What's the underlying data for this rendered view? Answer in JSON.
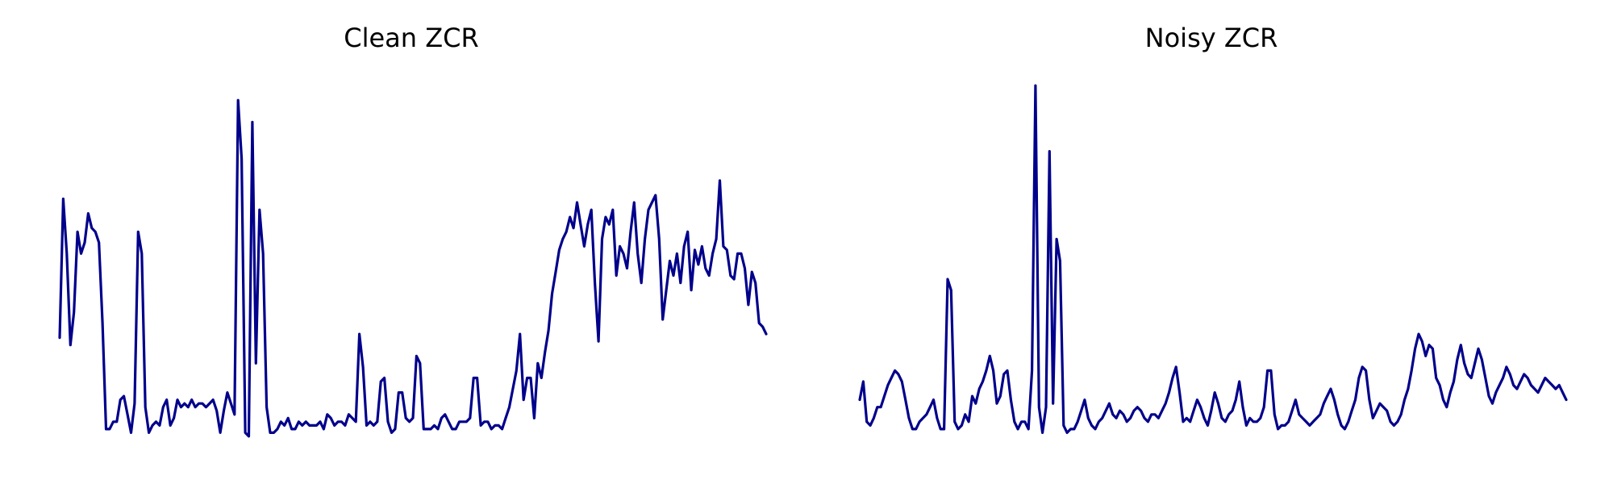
{
  "colors": {
    "line": "#00008B",
    "background": "#ffffff"
  },
  "chart_data": [
    {
      "type": "line",
      "title": "Clean ZCR",
      "xlabel": "",
      "ylabel": "",
      "axes_visible": false,
      "grid": false,
      "ylim": [
        0,
        1
      ],
      "series": [
        {
          "values": [
            0.29,
            0.67,
            0.52,
            0.27,
            0.36,
            0.58,
            0.52,
            0.55,
            0.63,
            0.59,
            0.58,
            0.55,
            0.33,
            0.04,
            0.04,
            0.06,
            0.06,
            0.12,
            0.13,
            0.08,
            0.03,
            0.11,
            0.58,
            0.52,
            0.1,
            0.03,
            0.05,
            0.06,
            0.05,
            0.1,
            0.12,
            0.05,
            0.07,
            0.12,
            0.1,
            0.11,
            0.1,
            0.12,
            0.1,
            0.11,
            0.11,
            0.1,
            0.11,
            0.12,
            0.09,
            0.03,
            0.09,
            0.14,
            0.11,
            0.08,
            0.94,
            0.78,
            0.03,
            0.02,
            0.88,
            0.22,
            0.64,
            0.52,
            0.1,
            0.03,
            0.03,
            0.04,
            0.06,
            0.05,
            0.07,
            0.04,
            0.04,
            0.06,
            0.05,
            0.06,
            0.05,
            0.05,
            0.05,
            0.06,
            0.04,
            0.08,
            0.07,
            0.05,
            0.06,
            0.06,
            0.05,
            0.08,
            0.07,
            0.06,
            0.3,
            0.21,
            0.05,
            0.06,
            0.05,
            0.06,
            0.17,
            0.18,
            0.06,
            0.03,
            0.04,
            0.14,
            0.14,
            0.07,
            0.06,
            0.07,
            0.24,
            0.22,
            0.04,
            0.04,
            0.04,
            0.05,
            0.04,
            0.07,
            0.08,
            0.06,
            0.04,
            0.04,
            0.06,
            0.06,
            0.06,
            0.07,
            0.18,
            0.18,
            0.05,
            0.06,
            0.06,
            0.04,
            0.05,
            0.05,
            0.04,
            0.07,
            0.1,
            0.15,
            0.2,
            0.3,
            0.12,
            0.18,
            0.18,
            0.07,
            0.22,
            0.18,
            0.25,
            0.31,
            0.41,
            0.47,
            0.53,
            0.56,
            0.58,
            0.62,
            0.59,
            0.66,
            0.6,
            0.54,
            0.6,
            0.64,
            0.44,
            0.28,
            0.56,
            0.62,
            0.6,
            0.64,
            0.46,
            0.54,
            0.52,
            0.48,
            0.58,
            0.66,
            0.52,
            0.44,
            0.56,
            0.64,
            0.66,
            0.68,
            0.56,
            0.34,
            0.42,
            0.5,
            0.46,
            0.52,
            0.44,
            0.54,
            0.58,
            0.42,
            0.53,
            0.49,
            0.54,
            0.48,
            0.46,
            0.52,
            0.56,
            0.72,
            0.54,
            0.53,
            0.46,
            0.45,
            0.52,
            0.52,
            0.48,
            0.38,
            0.47,
            0.44,
            0.33,
            0.32,
            0.3
          ]
        }
      ]
    },
    {
      "type": "line",
      "title": "Noisy ZCR",
      "xlabel": "",
      "ylabel": "",
      "axes_visible": false,
      "grid": false,
      "ylim": [
        0,
        1
      ],
      "series": [
        {
          "values": [
            0.12,
            0.17,
            0.06,
            0.05,
            0.07,
            0.1,
            0.1,
            0.13,
            0.16,
            0.18,
            0.2,
            0.19,
            0.17,
            0.12,
            0.07,
            0.04,
            0.04,
            0.06,
            0.07,
            0.08,
            0.1,
            0.12,
            0.07,
            0.04,
            0.04,
            0.45,
            0.42,
            0.06,
            0.04,
            0.05,
            0.08,
            0.06,
            0.13,
            0.11,
            0.15,
            0.17,
            0.2,
            0.24,
            0.2,
            0.11,
            0.13,
            0.19,
            0.2,
            0.12,
            0.06,
            0.04,
            0.06,
            0.06,
            0.04,
            0.2,
            0.98,
            0.1,
            0.03,
            0.1,
            0.8,
            0.11,
            0.56,
            0.5,
            0.05,
            0.03,
            0.04,
            0.04,
            0.06,
            0.09,
            0.12,
            0.07,
            0.05,
            0.04,
            0.06,
            0.07,
            0.09,
            0.11,
            0.08,
            0.07,
            0.09,
            0.08,
            0.06,
            0.07,
            0.09,
            0.1,
            0.09,
            0.07,
            0.06,
            0.08,
            0.08,
            0.07,
            0.09,
            0.11,
            0.14,
            0.18,
            0.21,
            0.14,
            0.06,
            0.07,
            0.06,
            0.09,
            0.12,
            0.1,
            0.07,
            0.05,
            0.09,
            0.14,
            0.11,
            0.07,
            0.06,
            0.08,
            0.09,
            0.12,
            0.17,
            0.1,
            0.05,
            0.07,
            0.06,
            0.06,
            0.07,
            0.1,
            0.2,
            0.2,
            0.08,
            0.04,
            0.05,
            0.05,
            0.06,
            0.09,
            0.12,
            0.08,
            0.07,
            0.06,
            0.05,
            0.06,
            0.07,
            0.08,
            0.11,
            0.13,
            0.15,
            0.12,
            0.08,
            0.05,
            0.04,
            0.06,
            0.09,
            0.12,
            0.18,
            0.21,
            0.2,
            0.12,
            0.07,
            0.09,
            0.11,
            0.1,
            0.09,
            0.06,
            0.05,
            0.06,
            0.08,
            0.12,
            0.15,
            0.2,
            0.26,
            0.3,
            0.28,
            0.24,
            0.27,
            0.26,
            0.18,
            0.16,
            0.12,
            0.1,
            0.14,
            0.17,
            0.23,
            0.27,
            0.22,
            0.19,
            0.18,
            0.22,
            0.26,
            0.23,
            0.18,
            0.13,
            0.11,
            0.14,
            0.16,
            0.18,
            0.21,
            0.19,
            0.16,
            0.15,
            0.17,
            0.19,
            0.18,
            0.16,
            0.15,
            0.14,
            0.16,
            0.18,
            0.17,
            0.16,
            0.15,
            0.16,
            0.14,
            0.12
          ]
        }
      ]
    }
  ]
}
